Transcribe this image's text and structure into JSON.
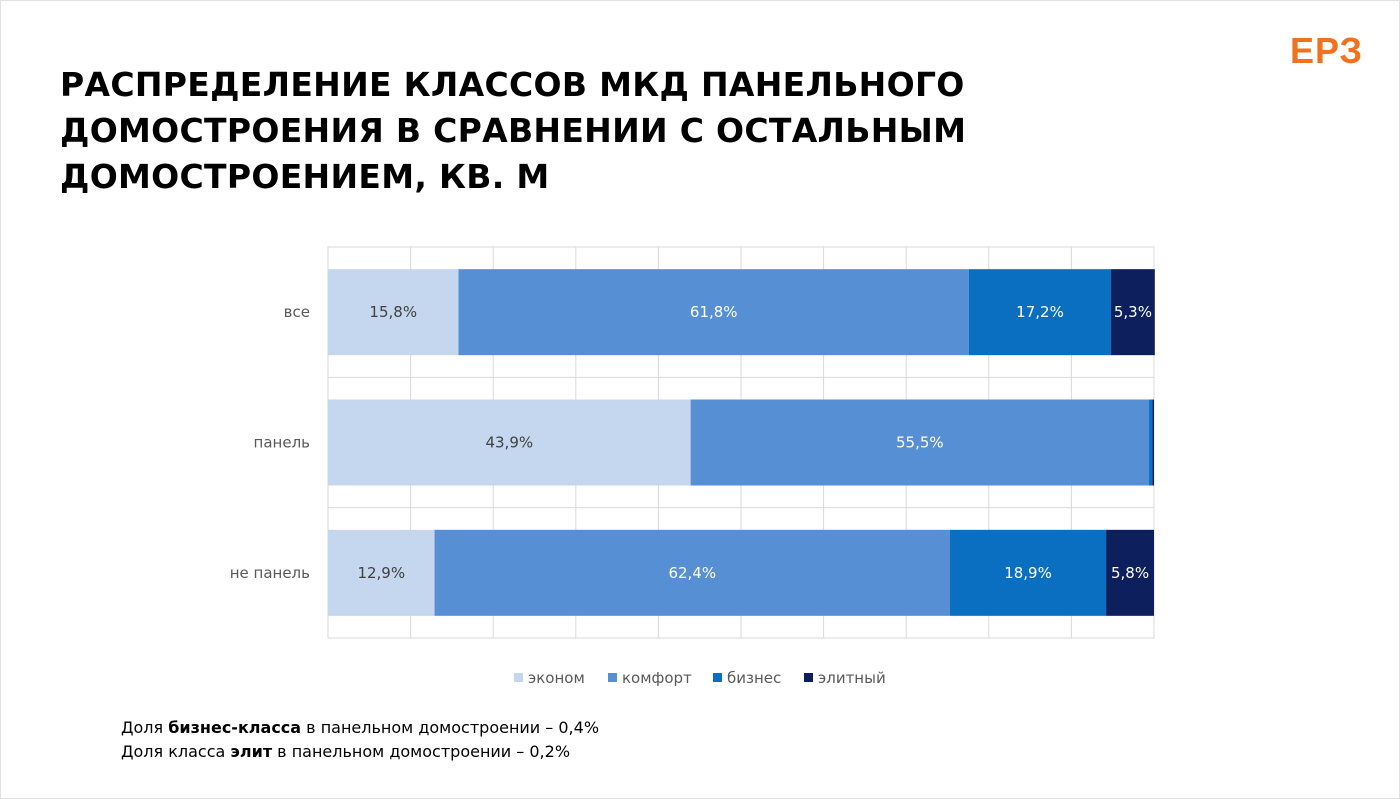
{
  "logo": {
    "text": "ЕРЗ",
    "color": "#f2711c"
  },
  "title": {
    "line1": "РАСПРЕДЕЛЕНИЕ КЛАССОВ МКД ПАНЕЛЬНОГО",
    "line2": "ДОМОСТРОЕНИЯ В СРАВНЕНИИ С ОСТАЛЬНЫМ",
    "line3": "ДОМОСТРОЕНИЕМ, КВ. М"
  },
  "chart_data": {
    "type": "bar",
    "orientation": "horizontal",
    "stacked": "100%",
    "categories": [
      "все",
      "панель",
      "не панель"
    ],
    "series": [
      {
        "name": "эконом",
        "color": "#c5d7ee",
        "values": [
          15.8,
          43.9,
          12.9
        ],
        "labels": [
          "15,8%",
          "43,9%",
          "12,9%"
        ],
        "label_color": "#404040"
      },
      {
        "name": "комфорт",
        "color": "#578fd4",
        "values": [
          61.8,
          55.5,
          62.4
        ],
        "labels": [
          "61,8%",
          "55,5%",
          "62,4%"
        ],
        "label_color": "#ffffff"
      },
      {
        "name": "бизнес",
        "color": "#0a6fc0",
        "values": [
          17.2,
          0.4,
          18.9
        ],
        "labels": [
          "17,2%",
          "",
          "18,9%"
        ],
        "label_color": "#ffffff"
      },
      {
        "name": "элитный",
        "color": "#0d1f5c",
        "values": [
          5.3,
          0.2,
          5.8
        ],
        "labels": [
          "5,3%",
          "",
          "5,8%"
        ],
        "label_color": "#ffffff"
      }
    ],
    "xlim": [
      0,
      100
    ],
    "grid": true,
    "legend_position": "bottom"
  },
  "notes": {
    "line1": {
      "prefix": "Доля ",
      "bold": "бизнес-класса",
      "suffix": " в панельном домостроении – 0,4%"
    },
    "line2": {
      "prefix": "Доля класса ",
      "bold": "элит",
      "suffix": " в панельном домостроении – 0,2%"
    }
  }
}
